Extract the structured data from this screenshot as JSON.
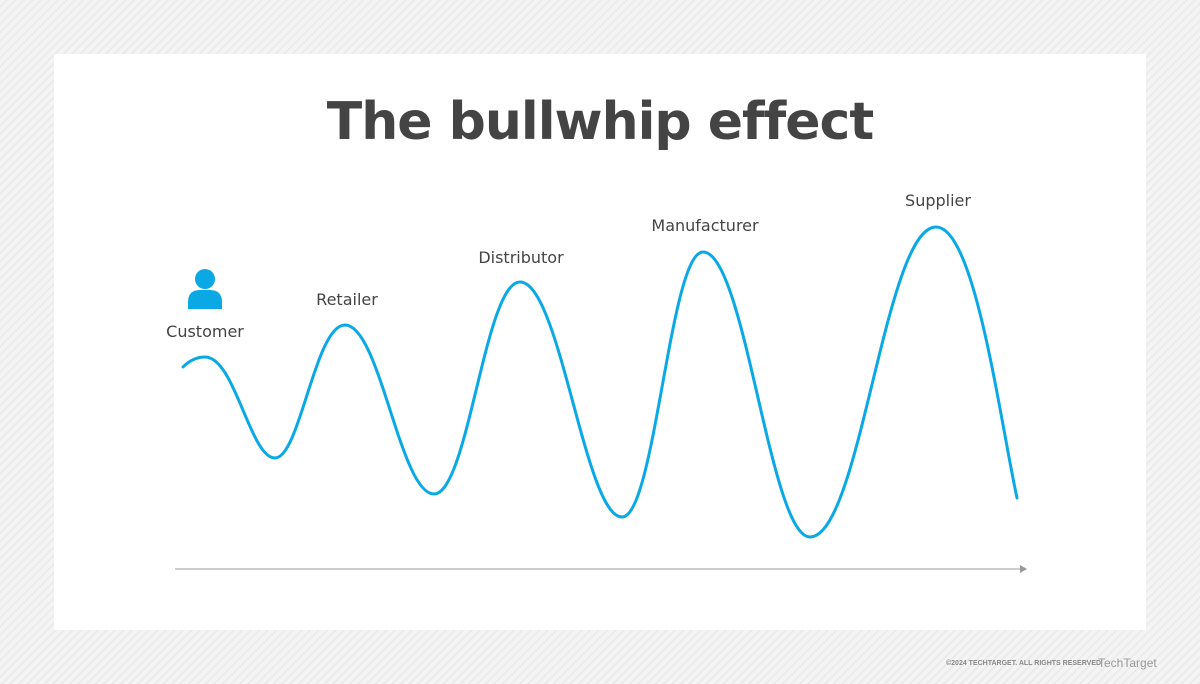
{
  "title": "The bullwhip effect",
  "stages": [
    {
      "label": "Customer"
    },
    {
      "label": "Retailer"
    },
    {
      "label": "Distributor"
    },
    {
      "label": "Manufacturer"
    },
    {
      "label": "Supplier"
    }
  ],
  "icons": {
    "customer": "person-icon"
  },
  "colors": {
    "wave": "#0aa9e6",
    "text": "#444444",
    "axis": "#999999"
  },
  "footer": {
    "copyright": "©2024 TECHTARGET. ALL RIGHTS RESERVED",
    "brand": "TechTarget"
  }
}
